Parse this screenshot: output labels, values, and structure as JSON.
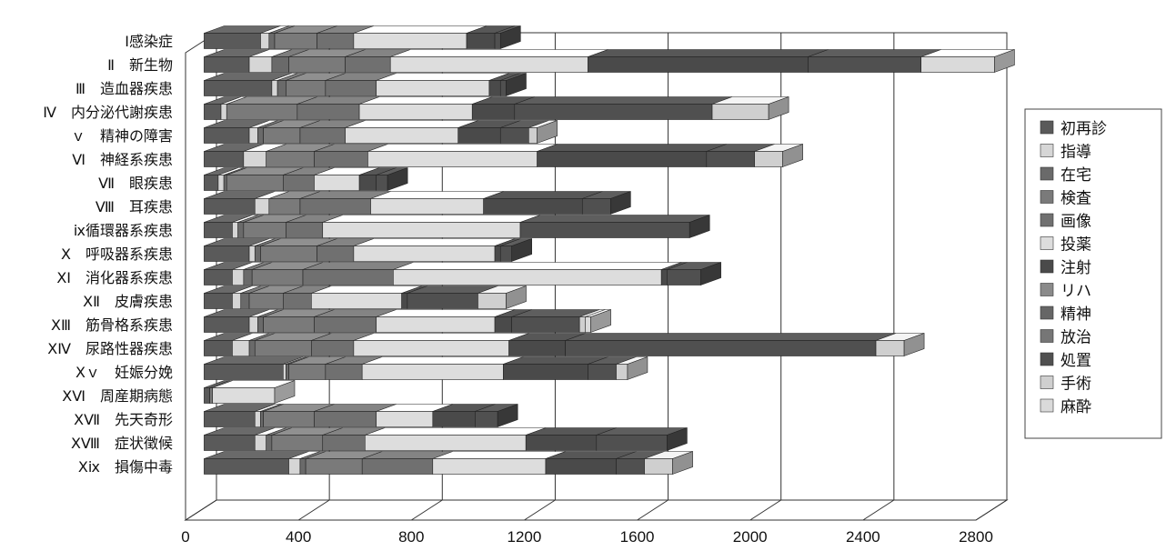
{
  "chart_data": {
    "type": "bar",
    "orientation": "horizontal",
    "stacked": true,
    "three_d": true,
    "title": "",
    "categories": [
      "Ⅰ感染症",
      "Ⅱ　新生物",
      "Ⅲ　造血器疾患",
      "Ⅳ　内分泌代謝疾患",
      "ｖ　精神の障害",
      "Ⅵ　神経系疾患",
      "Ⅶ　眼疾患",
      "Ⅷ　耳疾患",
      "ⅸ循環器系疾患",
      "Ⅹ　呼吸器系疾患",
      "ⅩⅠ　消化器系疾患",
      "ⅩⅡ　皮膚疾患",
      "ⅩⅢ　筋骨格系疾患",
      "ⅩⅣ　尿路性器疾患",
      "Ⅹｖ　妊娠分娩",
      "ⅩⅥ　周産期病態",
      "ⅩⅦ　先天奇形",
      "ⅩⅧ　症状徴候",
      "Ⅹⅸ　損傷中毒"
    ],
    "series": [
      {
        "name": "初再診",
        "color": "#5a5a5a",
        "values": [
          200,
          160,
          240,
          60,
          160,
          140,
          50,
          180,
          100,
          160,
          100,
          100,
          160,
          100,
          280,
          20,
          180,
          180,
          300
        ]
      },
      {
        "name": "指導",
        "color": "#d6d6d6",
        "values": [
          30,
          80,
          20,
          20,
          30,
          80,
          20,
          50,
          20,
          20,
          40,
          30,
          30,
          60,
          10,
          0,
          20,
          40,
          40
        ]
      },
      {
        "name": "在宅",
        "color": "#6a6a6a",
        "values": [
          20,
          60,
          30,
          0,
          20,
          0,
          10,
          0,
          20,
          20,
          30,
          30,
          20,
          20,
          10,
          0,
          10,
          20,
          20
        ]
      },
      {
        "name": "検査",
        "color": "#7a7a7a",
        "values": [
          150,
          200,
          140,
          250,
          130,
          170,
          200,
          110,
          150,
          200,
          180,
          120,
          180,
          200,
          130,
          10,
          180,
          180,
          200
        ]
      },
      {
        "name": "画像",
        "color": "#707070",
        "values": [
          130,
          160,
          180,
          220,
          160,
          190,
          110,
          250,
          130,
          130,
          320,
          100,
          220,
          150,
          130,
          0,
          220,
          150,
          250
        ]
      },
      {
        "name": "投薬",
        "color": "#dddddd",
        "values": [
          400,
          700,
          400,
          400,
          400,
          600,
          160,
          400,
          700,
          500,
          950,
          320,
          420,
          550,
          500,
          220,
          200,
          570,
          400
        ]
      },
      {
        "name": "注射",
        "color": "#4a4a4a",
        "values": [
          100,
          780,
          40,
          150,
          150,
          600,
          60,
          350,
          0,
          20,
          20,
          20,
          60,
          200,
          300,
          0,
          150,
          250,
          250
        ]
      },
      {
        "name": "リハ",
        "color": "#8a8a8a",
        "values": [
          0,
          0,
          0,
          0,
          0,
          0,
          0,
          0,
          0,
          0,
          0,
          0,
          0,
          0,
          0,
          0,
          0,
          0,
          0
        ]
      },
      {
        "name": "精神",
        "color": "#666666",
        "values": [
          0,
          0,
          0,
          0,
          0,
          0,
          0,
          0,
          0,
          0,
          0,
          0,
          0,
          0,
          0,
          0,
          0,
          0,
          0
        ]
      },
      {
        "name": "放治",
        "color": "#767676",
        "values": [
          0,
          0,
          0,
          0,
          0,
          0,
          0,
          0,
          0,
          0,
          0,
          0,
          0,
          0,
          0,
          0,
          0,
          0,
          0
        ]
      },
      {
        "name": "処置",
        "color": "#505050",
        "values": [
          20,
          400,
          20,
          700,
          100,
          170,
          40,
          100,
          600,
          40,
          120,
          250,
          240,
          1100,
          100,
          0,
          80,
          250,
          100
        ]
      },
      {
        "name": "手術",
        "color": "#cfcfcf",
        "values": [
          0,
          0,
          0,
          200,
          30,
          100,
          0,
          0,
          0,
          0,
          0,
          100,
          20,
          100,
          40,
          0,
          0,
          0,
          100
        ]
      },
      {
        "name": "麻酔",
        "color": "#dadada",
        "values": [
          0,
          260,
          0,
          0,
          0,
          0,
          0,
          0,
          0,
          0,
          0,
          0,
          20,
          0,
          0,
          0,
          0,
          0,
          0
        ]
      }
    ],
    "xlim": [
      0,
      2800
    ],
    "xticks": [
      "0",
      "400",
      "800",
      "1200",
      "1600",
      "2000",
      "2400",
      "2800"
    ],
    "grid": true,
    "legend_position": "right"
  }
}
